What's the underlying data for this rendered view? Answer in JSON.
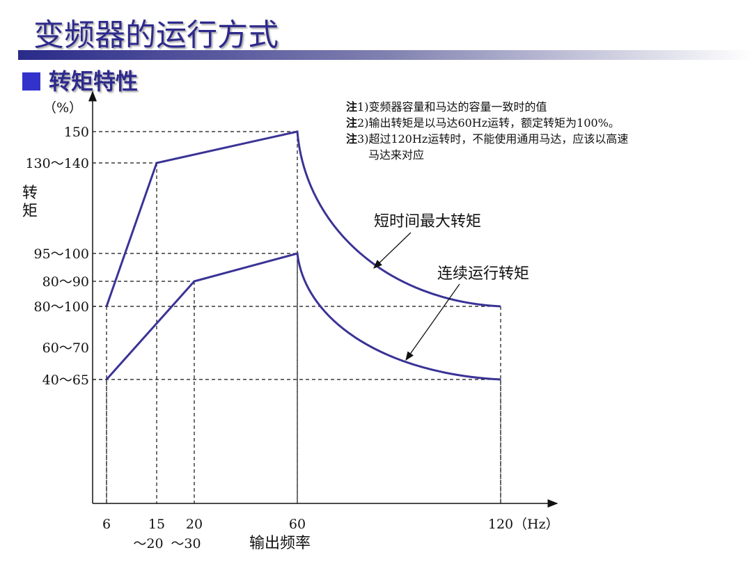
{
  "title": "变频器的运行方式",
  "subtitle": "转矩特性",
  "notes": [
    {
      "tag": "注",
      "text": "1)变频器容量和马达的容量一致时的值"
    },
    {
      "tag": "注",
      "text": "2)输出转矩是以马达60Hz运转，额定转矩为100%。"
    },
    {
      "tag": "注",
      "text": "3)超过120Hz运转时，不能使用通用马达，应该以高速"
    },
    {
      "tag": "",
      "text": "马达来对应"
    }
  ],
  "colors": {
    "title": "#2e2a8c",
    "curve": "#3a3396"
  },
  "chart_data": {
    "type": "line",
    "ylabel": "转矩",
    "yunit": "（%）",
    "xlabel": "输出频率",
    "xunit": "（Hz）",
    "y_ticks": [
      "150",
      "130～140",
      "95～100",
      "80～90",
      "80～100",
      "60～70",
      "40～65"
    ],
    "x_ticks": [
      {
        "value": 6,
        "label": "6"
      },
      {
        "value": 15,
        "label": "15",
        "sub": "～20"
      },
      {
        "value": 20,
        "label": "20",
        "sub": "～30"
      },
      {
        "value": 60,
        "label": "60"
      },
      {
        "value": 120,
        "label": "120"
      }
    ],
    "series": [
      {
        "name": "短时间最大转矩",
        "points": [
          [
            6,
            "80～100"
          ],
          [
            15,
            "130～140"
          ],
          [
            60,
            "150"
          ],
          [
            120,
            "80～100"
          ]
        ]
      },
      {
        "name": "连续运行转矩",
        "points": [
          [
            6,
            "40～65"
          ],
          [
            20,
            "80～90"
          ],
          [
            60,
            "95～100"
          ],
          [
            120,
            "40～65"
          ]
        ]
      }
    ]
  }
}
